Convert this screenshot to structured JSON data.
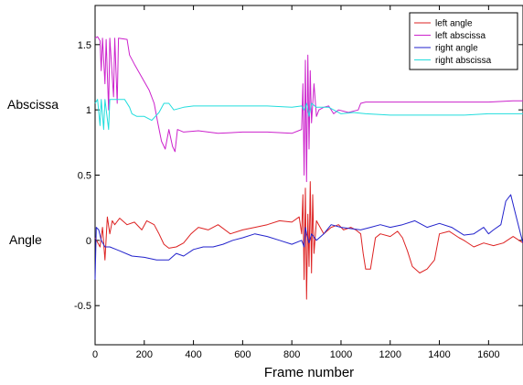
{
  "chart_data": {
    "type": "line",
    "title": "",
    "xlabel": "Frame number",
    "ylabel": "",
    "left_labels": {
      "abscissa": "Abscissa",
      "angle": "Angle"
    },
    "xlim": [
      0,
      1740
    ],
    "ylim": [
      -0.8,
      1.8
    ],
    "x_ticks": [
      0,
      200,
      400,
      600,
      800,
      1000,
      1200,
      1400,
      1600
    ],
    "y_ticks": [
      -0.5,
      0,
      0.5,
      1,
      1.5
    ],
    "y_tick_labels": [
      "-0.5",
      "0",
      "0.5",
      "1",
      "1.5"
    ],
    "grid": false,
    "legend_position": "top-right",
    "series": [
      {
        "name": "left angle",
        "color": "#dd2222",
        "points": [
          [
            0,
            0.02
          ],
          [
            20,
            -0.05
          ],
          [
            30,
            0.1
          ],
          [
            40,
            -0.15
          ],
          [
            50,
            0.18
          ],
          [
            60,
            0.05
          ],
          [
            70,
            0.15
          ],
          [
            80,
            0.12
          ],
          [
            100,
            0.17
          ],
          [
            130,
            0.12
          ],
          [
            160,
            0.14
          ],
          [
            190,
            0.08
          ],
          [
            210,
            0.15
          ],
          [
            240,
            0.12
          ],
          [
            260,
            0.05
          ],
          [
            280,
            -0.03
          ],
          [
            300,
            -0.06
          ],
          [
            330,
            -0.05
          ],
          [
            360,
            -0.02
          ],
          [
            390,
            0.05
          ],
          [
            420,
            0.1
          ],
          [
            460,
            0.08
          ],
          [
            500,
            0.12
          ],
          [
            550,
            0.05
          ],
          [
            600,
            0.08
          ],
          [
            650,
            0.1
          ],
          [
            700,
            0.12
          ],
          [
            750,
            0.15
          ],
          [
            800,
            0.14
          ],
          [
            830,
            0.18
          ],
          [
            840,
            0.05
          ],
          [
            845,
            0.35
          ],
          [
            850,
            -0.3
          ],
          [
            855,
            0.4
          ],
          [
            860,
            -0.45
          ],
          [
            865,
            0.2
          ],
          [
            870,
            -0.2
          ],
          [
            875,
            0.45
          ],
          [
            880,
            -0.25
          ],
          [
            885,
            0.35
          ],
          [
            890,
            -0.1
          ],
          [
            900,
            0.15
          ],
          [
            930,
            0.05
          ],
          [
            960,
            0.1
          ],
          [
            990,
            0.12
          ],
          [
            1010,
            0.08
          ],
          [
            1040,
            0.1
          ],
          [
            1060,
            0.08
          ],
          [
            1080,
            0.05
          ],
          [
            1090,
            -0.1
          ],
          [
            1100,
            -0.22
          ],
          [
            1120,
            -0.22
          ],
          [
            1140,
            0.02
          ],
          [
            1160,
            0.05
          ],
          [
            1200,
            0.03
          ],
          [
            1230,
            0.07
          ],
          [
            1250,
            0.02
          ],
          [
            1270,
            -0.08
          ],
          [
            1290,
            -0.2
          ],
          [
            1320,
            -0.25
          ],
          [
            1350,
            -0.22
          ],
          [
            1380,
            -0.15
          ],
          [
            1400,
            0.05
          ],
          [
            1440,
            0.07
          ],
          [
            1480,
            0.02
          ],
          [
            1500,
            0.0
          ],
          [
            1540,
            -0.05
          ],
          [
            1580,
            -0.02
          ],
          [
            1620,
            -0.04
          ],
          [
            1660,
            -0.02
          ],
          [
            1700,
            0.03
          ],
          [
            1740,
            -0.02
          ]
        ]
      },
      {
        "name": "left abscissa",
        "color": "#cc22cc",
        "points": [
          [
            0,
            1.55
          ],
          [
            10,
            1.56
          ],
          [
            20,
            1.53
          ],
          [
            25,
            1.3
          ],
          [
            30,
            1.55
          ],
          [
            40,
            1.2
          ],
          [
            45,
            1.54
          ],
          [
            55,
            1.0
          ],
          [
            60,
            1.55
          ],
          [
            75,
            1.1
          ],
          [
            80,
            1.55
          ],
          [
            90,
            1.05
          ],
          [
            95,
            1.55
          ],
          [
            130,
            1.54
          ],
          [
            140,
            1.42
          ],
          [
            160,
            1.35
          ],
          [
            190,
            1.25
          ],
          [
            220,
            1.15
          ],
          [
            240,
            1.05
          ],
          [
            255,
            0.9
          ],
          [
            270,
            0.76
          ],
          [
            285,
            0.7
          ],
          [
            300,
            0.85
          ],
          [
            315,
            0.72
          ],
          [
            325,
            0.68
          ],
          [
            335,
            0.85
          ],
          [
            360,
            0.83
          ],
          [
            420,
            0.84
          ],
          [
            500,
            0.82
          ],
          [
            600,
            0.83
          ],
          [
            700,
            0.83
          ],
          [
            800,
            0.82
          ],
          [
            840,
            0.85
          ],
          [
            845,
            1.2
          ],
          [
            850,
            0.5
          ],
          [
            855,
            1.38
          ],
          [
            860,
            0.45
          ],
          [
            865,
            1.42
          ],
          [
            870,
            0.7
          ],
          [
            875,
            1.3
          ],
          [
            880,
            0.9
          ],
          [
            890,
            1.2
          ],
          [
            900,
            0.95
          ],
          [
            910,
            1.0
          ],
          [
            930,
            1.02
          ],
          [
            950,
            1.03
          ],
          [
            970,
            0.97
          ],
          [
            990,
            1.0
          ],
          [
            1030,
            0.98
          ],
          [
            1070,
            1.0
          ],
          [
            1080,
            1.05
          ],
          [
            1100,
            1.06
          ],
          [
            1200,
            1.06
          ],
          [
            1300,
            1.06
          ],
          [
            1400,
            1.06
          ],
          [
            1500,
            1.06
          ],
          [
            1600,
            1.06
          ],
          [
            1700,
            1.07
          ],
          [
            1740,
            1.07
          ]
        ]
      },
      {
        "name": "right angle",
        "color": "#2222cc",
        "points": [
          [
            0,
            -0.3
          ],
          [
            5,
            0.1
          ],
          [
            15,
            0.08
          ],
          [
            25,
            0.0
          ],
          [
            40,
            -0.05
          ],
          [
            60,
            -0.05
          ],
          [
            100,
            -0.08
          ],
          [
            150,
            -0.12
          ],
          [
            200,
            -0.13
          ],
          [
            250,
            -0.15
          ],
          [
            300,
            -0.15
          ],
          [
            330,
            -0.1
          ],
          [
            360,
            -0.12
          ],
          [
            400,
            -0.07
          ],
          [
            440,
            -0.05
          ],
          [
            480,
            -0.05
          ],
          [
            520,
            -0.03
          ],
          [
            560,
            0.0
          ],
          [
            600,
            0.02
          ],
          [
            650,
            0.05
          ],
          [
            700,
            0.03
          ],
          [
            750,
            0.0
          ],
          [
            800,
            -0.03
          ],
          [
            840,
            0.0
          ],
          [
            850,
            -0.05
          ],
          [
            855,
            0.1
          ],
          [
            860,
            0.05
          ],
          [
            870,
            -0.02
          ],
          [
            880,
            0.05
          ],
          [
            900,
            0.0
          ],
          [
            930,
            0.05
          ],
          [
            960,
            0.12
          ],
          [
            1000,
            0.1
          ],
          [
            1040,
            0.09
          ],
          [
            1080,
            0.08
          ],
          [
            1120,
            0.1
          ],
          [
            1160,
            0.12
          ],
          [
            1200,
            0.1
          ],
          [
            1250,
            0.12
          ],
          [
            1300,
            0.15
          ],
          [
            1350,
            0.1
          ],
          [
            1400,
            0.13
          ],
          [
            1450,
            0.1
          ],
          [
            1500,
            0.04
          ],
          [
            1540,
            0.05
          ],
          [
            1580,
            0.1
          ],
          [
            1600,
            0.05
          ],
          [
            1620,
            0.08
          ],
          [
            1650,
            0.12
          ],
          [
            1670,
            0.3
          ],
          [
            1690,
            0.35
          ],
          [
            1710,
            0.2
          ],
          [
            1730,
            0.05
          ],
          [
            1740,
            -0.02
          ]
        ]
      },
      {
        "name": "right abscissa",
        "color": "#22dddd",
        "points": [
          [
            0,
            1.05
          ],
          [
            10,
            1.08
          ],
          [
            20,
            0.88
          ],
          [
            25,
            1.08
          ],
          [
            35,
            0.85
          ],
          [
            40,
            1.08
          ],
          [
            55,
            0.85
          ],
          [
            60,
            1.08
          ],
          [
            80,
            1.08
          ],
          [
            120,
            1.08
          ],
          [
            140,
            1.02
          ],
          [
            150,
            0.97
          ],
          [
            170,
            0.95
          ],
          [
            200,
            0.95
          ],
          [
            230,
            0.92
          ],
          [
            260,
            0.98
          ],
          [
            280,
            1.05
          ],
          [
            300,
            1.05
          ],
          [
            320,
            1.0
          ],
          [
            360,
            1.02
          ],
          [
            400,
            1.03
          ],
          [
            500,
            1.03
          ],
          [
            600,
            1.03
          ],
          [
            700,
            1.03
          ],
          [
            800,
            1.02
          ],
          [
            840,
            1.03
          ],
          [
            850,
            1.0
          ],
          [
            860,
            1.05
          ],
          [
            870,
            0.95
          ],
          [
            880,
            1.05
          ],
          [
            900,
            1.02
          ],
          [
            950,
            1.02
          ],
          [
            1000,
            0.97
          ],
          [
            1050,
            0.98
          ],
          [
            1100,
            0.97
          ],
          [
            1200,
            0.96
          ],
          [
            1300,
            0.96
          ],
          [
            1400,
            0.96
          ],
          [
            1500,
            0.96
          ],
          [
            1600,
            0.97
          ],
          [
            1700,
            0.97
          ],
          [
            1740,
            0.97
          ]
        ]
      }
    ]
  }
}
